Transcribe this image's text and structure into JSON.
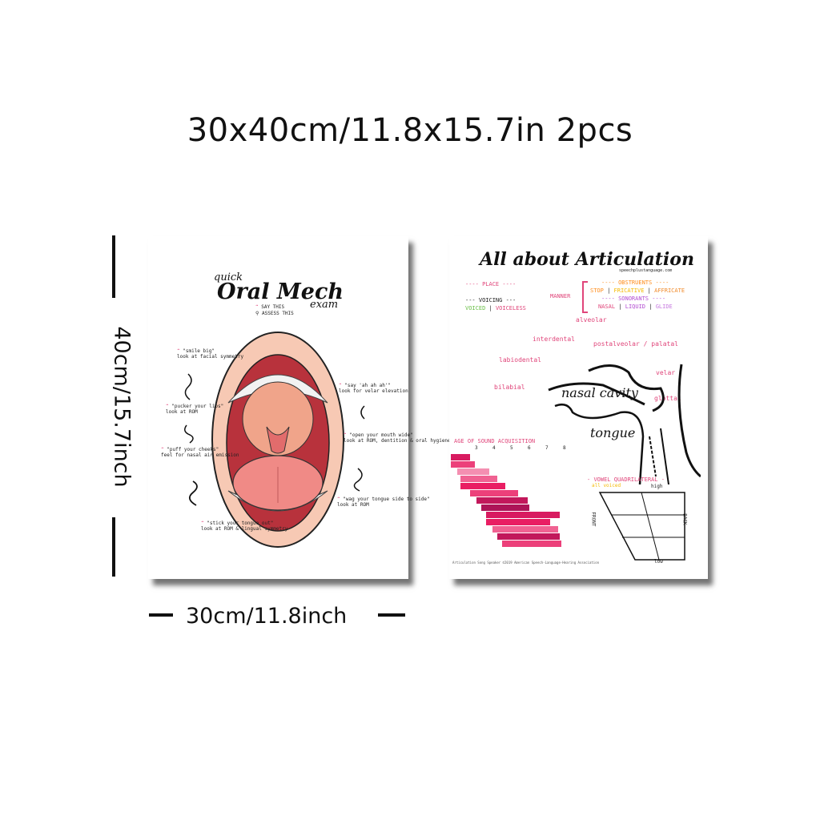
{
  "heading": "30x40cm/11.8x15.7in 2pcs",
  "dimensions": {
    "height_label": "40cm/15.7inch",
    "width_label": "30cm/11.8inch"
  },
  "poster_left": {
    "title_small": "quick",
    "title_main": "Oral Mech",
    "title_sub": "exam",
    "legend": [
      "SAY THIS",
      "ASSESS THIS"
    ],
    "notes_left": [
      {
        "say": "\"smile big\"",
        "look": "look at facial symmetry"
      },
      {
        "say": "\"pucker your lips\"",
        "look": "look at ROM"
      },
      {
        "say": "\"puff your cheeks\"",
        "look": "feel for nasal air emission"
      },
      {
        "say": "\"stick your tongue out\"",
        "look": "look at ROM & lingual symmetry"
      }
    ],
    "notes_right": [
      {
        "say": "\"say 'ah ah ah'\"",
        "look": "look for velar elevation"
      },
      {
        "say": "\"open your mouth wide\"",
        "look": "look at ROM, dentition & oral hygiene"
      },
      {
        "say": "\"wag your tongue side to side\"",
        "look": "look at ROM"
      }
    ]
  },
  "poster_right": {
    "title": "All about Articulation",
    "site": "speechplustanguage.com",
    "place_label": "PLACE",
    "voicing_label": "VOICING",
    "voicing_values": [
      "VOICED",
      "VOICELESS"
    ],
    "manner_label": "MANNER",
    "obstruents_label": "OBSTRUENTS",
    "obstruents_values": [
      "STOP",
      "FRICATIVE",
      "AFFRICATE"
    ],
    "sonorants_label": "SONORANTS",
    "sonorants_values": [
      "NASAL",
      "LIQUID",
      "GLIDE"
    ],
    "places": [
      "alveolar",
      "interdental",
      "postalveolar / palatal",
      "labiodental",
      "velar",
      "bilabial",
      "glottal"
    ],
    "organs": [
      "nasal cavity",
      "tongue"
    ],
    "age_title": "AGE OF SOUND ACQUISITION",
    "age_ticks": [
      "3",
      "4",
      "5",
      "6",
      "7",
      "8"
    ],
    "vowel_title": "VOWEL QUADRILATERAL",
    "vowel_high": "high",
    "vowel_low": "low",
    "vowel_front": "FRONT",
    "vowel_back": "BACK",
    "vowel_sub": "all voiced",
    "footer": "Articulation Song Speaker ©2019 American Speech-Language-Hearing Association"
  },
  "colors": {
    "accent_pink": "#e0457a",
    "mouth_red": "#d9534f",
    "bars": "#c2185b"
  }
}
